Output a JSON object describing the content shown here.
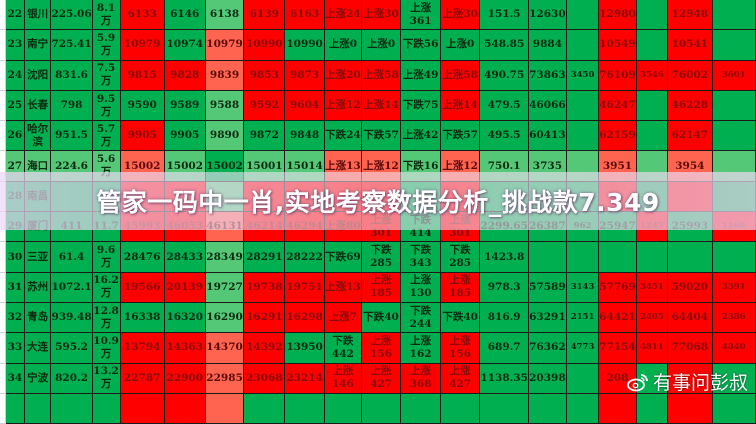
{
  "title": "管家一码中一肖,实地考察数据分析_挑战款7.349",
  "watermark": "有事问彭叔",
  "colors": {
    "g": "#00b050",
    "lg": "#55c878",
    "r": "#ff0000",
    "lr": "#ff6450"
  },
  "rows": [
    [
      [
        "22",
        "g"
      ],
      [
        "银川",
        "g"
      ],
      [
        "225.06",
        "g"
      ],
      [
        "8.1\n万",
        "g"
      ],
      [
        "6133",
        "r"
      ],
      [
        "6146",
        "g"
      ],
      [
        "6138",
        "lg"
      ],
      [
        "6139",
        "r"
      ],
      [
        "6163",
        "r"
      ],
      [
        "上涨24",
        "r"
      ],
      [
        "上涨30",
        "r"
      ],
      [
        "上涨361",
        "g"
      ],
      [
        "上涨30",
        "r"
      ],
      [
        "151.5",
        "g"
      ],
      [
        "12630",
        "g"
      ],
      [
        "",
        "g"
      ],
      [
        "12980",
        "r"
      ],
      [
        "",
        "g"
      ],
      [
        "12948",
        "r"
      ],
      [
        "",
        "g"
      ]
    ],
    [
      [
        "23",
        "g"
      ],
      [
        "南宁",
        "g"
      ],
      [
        "725.41",
        "g"
      ],
      [
        "5.9\n万",
        "g"
      ],
      [
        "10979",
        "r"
      ],
      [
        "10974",
        "g"
      ],
      [
        "10979",
        "lr"
      ],
      [
        "10990",
        "r"
      ],
      [
        "10990",
        "g"
      ],
      [
        "上涨0",
        "g"
      ],
      [
        "上涨0",
        "g"
      ],
      [
        "下跌56",
        "g"
      ],
      [
        "上涨0",
        "g"
      ],
      [
        "548.85",
        "g"
      ],
      [
        "9884",
        "g"
      ],
      [
        "",
        "g"
      ],
      [
        "10549",
        "r"
      ],
      [
        "",
        "g"
      ],
      [
        "10541",
        "r"
      ],
      [
        "",
        "g"
      ]
    ],
    [
      [
        "24",
        "g"
      ],
      [
        "沈阳",
        "g"
      ],
      [
        "831.6",
        "g"
      ],
      [
        "7.5\n万",
        "g"
      ],
      [
        "9815",
        "r"
      ],
      [
        "9828",
        "r"
      ],
      [
        "9839",
        "lr"
      ],
      [
        "9853",
        "r"
      ],
      [
        "9873",
        "r"
      ],
      [
        "上涨20",
        "r"
      ],
      [
        "上涨58",
        "r"
      ],
      [
        "上涨49",
        "g"
      ],
      [
        "上涨58",
        "r"
      ],
      [
        "490.75",
        "g"
      ],
      [
        "73863",
        "g"
      ],
      [
        "3450",
        "g"
      ],
      [
        "76109",
        "r"
      ],
      [
        "3546",
        "r"
      ],
      [
        "76002",
        "r"
      ],
      [
        "3601",
        "r"
      ]
    ],
    [
      [
        "25",
        "g"
      ],
      [
        "长春",
        "g"
      ],
      [
        "798",
        "g"
      ],
      [
        "9.5\n万",
        "g"
      ],
      [
        "9590",
        "g"
      ],
      [
        "9589",
        "g"
      ],
      [
        "9588",
        "lg"
      ],
      [
        "9592",
        "r"
      ],
      [
        "9604",
        "r"
      ],
      [
        "上涨12",
        "r"
      ],
      [
        "上涨14",
        "r"
      ],
      [
        "下跌75",
        "g"
      ],
      [
        "上涨14",
        "r"
      ],
      [
        "479.5",
        "g"
      ],
      [
        "46066",
        "g"
      ],
      [
        "",
        "g"
      ],
      [
        "46247",
        "r"
      ],
      [
        "",
        "g"
      ],
      [
        "46228",
        "r"
      ],
      [
        "",
        "g"
      ]
    ],
    [
      [
        "26",
        "g"
      ],
      [
        "哈尔滨",
        "g"
      ],
      [
        "951.5",
        "g"
      ],
      [
        "5.7\n万",
        "g"
      ],
      [
        "9905",
        "r"
      ],
      [
        "9905",
        "g"
      ],
      [
        "9890",
        "lg"
      ],
      [
        "9872",
        "g"
      ],
      [
        "9848",
        "g"
      ],
      [
        "下跌24",
        "g"
      ],
      [
        "下跌57",
        "g"
      ],
      [
        "上涨42",
        "g"
      ],
      [
        "下跌57",
        "g"
      ],
      [
        "495.5",
        "g"
      ],
      [
        "60413",
        "g"
      ],
      [
        "",
        "g"
      ],
      [
        "62159",
        "r"
      ],
      [
        "",
        "g"
      ],
      [
        "62147",
        "r"
      ],
      [
        "",
        "g"
      ]
    ],
    [
      [
        "27",
        "lg"
      ],
      [
        "海口",
        "lg"
      ],
      [
        "224.6",
        "lg"
      ],
      [
        "5.6\n万",
        "lg"
      ],
      [
        "15002",
        "lr"
      ],
      [
        "15002",
        "lg"
      ],
      [
        "15002",
        "g"
      ],
      [
        "15001",
        "lg"
      ],
      [
        "15014",
        "lg"
      ],
      [
        "上涨13",
        "lr"
      ],
      [
        "上涨12",
        "lr"
      ],
      [
        "下跌16",
        "lg"
      ],
      [
        "上涨12",
        "lr"
      ],
      [
        "750.1",
        "lg"
      ],
      [
        "3735",
        "lg"
      ],
      [
        "",
        "lg"
      ],
      [
        "3951",
        "lr"
      ],
      [
        "",
        "lg"
      ],
      [
        "3954",
        "lr"
      ],
      [
        "",
        "lg"
      ]
    ],
    [
      [
        "28",
        "g"
      ],
      [
        "南昌",
        "g"
      ],
      [
        "",
        "g"
      ],
      [
        "",
        "g"
      ],
      [
        "",
        "r"
      ],
      [
        "",
        "r"
      ],
      [
        "",
        "lg"
      ],
      [
        "",
        "r"
      ],
      [
        "",
        "r"
      ],
      [
        "",
        "r"
      ],
      [
        "",
        "r"
      ],
      [
        "",
        "g"
      ],
      [
        "",
        "r"
      ],
      [
        "",
        "g"
      ],
      [
        "",
        "g"
      ],
      [
        "",
        "g"
      ],
      [
        "",
        "r"
      ],
      [
        "",
        "g"
      ],
      [
        "",
        "r"
      ],
      [
        "",
        "g"
      ]
    ],
    [
      [
        "29",
        "g"
      ],
      [
        "厦门",
        "g"
      ],
      [
        "411",
        "g"
      ],
      [
        "11.7",
        "g"
      ],
      [
        "45993",
        "r"
      ],
      [
        "46053",
        "r"
      ],
      [
        "46131",
        "lr"
      ],
      [
        "46214",
        "r"
      ],
      [
        "46294",
        "r"
      ],
      [
        "上涨80",
        "r"
      ],
      [
        "上涨301",
        "r"
      ],
      [
        "下跌414",
        "g"
      ],
      [
        "上涨301",
        "r"
      ],
      [
        "2299.65",
        "g"
      ],
      [
        "26387",
        "g"
      ],
      [
        "962",
        "g"
      ],
      [
        "25947",
        "g"
      ],
      [
        "1247",
        "r"
      ],
      [
        "25993",
        "g"
      ],
      [
        "1168",
        "r"
      ]
    ],
    [
      [
        "30",
        "g"
      ],
      [
        "三亚",
        "g"
      ],
      [
        "61.4",
        "g"
      ],
      [
        "9.6\n万",
        "g"
      ],
      [
        "28476",
        "g"
      ],
      [
        "28433",
        "g"
      ],
      [
        "28349",
        "lg"
      ],
      [
        "28291",
        "g"
      ],
      [
        "28222",
        "g"
      ],
      [
        "下跌69",
        "g"
      ],
      [
        "下跌285",
        "g"
      ],
      [
        "下跌343",
        "g"
      ],
      [
        "下跌285",
        "g"
      ],
      [
        "1423.8",
        "g"
      ],
      [
        "",
        "g"
      ],
      [
        "",
        "g"
      ],
      [
        "",
        "g"
      ],
      [
        "",
        "g"
      ],
      [
        "",
        "g"
      ],
      [
        "",
        "g"
      ]
    ],
    [
      [
        "31",
        "g"
      ],
      [
        "苏州",
        "g"
      ],
      [
        "1072.1",
        "g"
      ],
      [
        "16.2\n万",
        "g"
      ],
      [
        "19566",
        "r"
      ],
      [
        "20139",
        "r"
      ],
      [
        "19727",
        "lg"
      ],
      [
        "19738",
        "r"
      ],
      [
        "19751",
        "r"
      ],
      [
        "上涨13",
        "r"
      ],
      [
        "上涨185",
        "r"
      ],
      [
        "上涨130",
        "g"
      ],
      [
        "上涨185",
        "r"
      ],
      [
        "978.3",
        "g"
      ],
      [
        "57589",
        "g"
      ],
      [
        "3143",
        "g"
      ],
      [
        "57769",
        "r"
      ],
      [
        "3451",
        "r"
      ],
      [
        "59020",
        "r"
      ],
      [
        "3391",
        "r"
      ]
    ],
    [
      [
        "32",
        "g"
      ],
      [
        "青岛",
        "g"
      ],
      [
        "939.48",
        "g"
      ],
      [
        "12.8\n万",
        "g"
      ],
      [
        "16338",
        "g"
      ],
      [
        "16320",
        "g"
      ],
      [
        "16290",
        "lg"
      ],
      [
        "16291",
        "r"
      ],
      [
        "16298",
        "r"
      ],
      [
        "上涨7",
        "r"
      ],
      [
        "下跌40",
        "g"
      ],
      [
        "下跌244",
        "g"
      ],
      [
        "下跌40",
        "g"
      ],
      [
        "816.9",
        "g"
      ],
      [
        "63291",
        "g"
      ],
      [
        "2151",
        "g"
      ],
      [
        "64421",
        "r"
      ],
      [
        "2405",
        "r"
      ],
      [
        "64404",
        "r"
      ],
      [
        "2386",
        "r"
      ]
    ],
    [
      [
        "33",
        "g"
      ],
      [
        "大连",
        "g"
      ],
      [
        "595.2",
        "g"
      ],
      [
        "10.9\n万",
        "g"
      ],
      [
        "13794",
        "r"
      ],
      [
        "14363",
        "r"
      ],
      [
        "14370",
        "lr"
      ],
      [
        "14392",
        "r"
      ],
      [
        "13950",
        "g"
      ],
      [
        "下跌442",
        "g"
      ],
      [
        "上涨156",
        "r"
      ],
      [
        "上涨162",
        "g"
      ],
      [
        "上涨156",
        "r"
      ],
      [
        "689.7",
        "g"
      ],
      [
        "76362",
        "g"
      ],
      [
        "4773",
        "g"
      ],
      [
        "77154",
        "r"
      ],
      [
        "4811",
        "r"
      ],
      [
        "77068",
        "r"
      ],
      [
        "4840",
        "r"
      ]
    ],
    [
      [
        "34",
        "g"
      ],
      [
        "宁波",
        "g"
      ],
      [
        "820.2",
        "g"
      ],
      [
        "13.2\n万",
        "g"
      ],
      [
        "22787",
        "r"
      ],
      [
        "22900",
        "r"
      ],
      [
        "22985",
        "lr"
      ],
      [
        "23068",
        "r"
      ],
      [
        "23214",
        "r"
      ],
      [
        "上涨146",
        "r"
      ],
      [
        "上涨427",
        "r"
      ],
      [
        "上涨368",
        "r"
      ],
      [
        "上涨427",
        "r"
      ],
      [
        "1138.35",
        "g"
      ],
      [
        "20398",
        "g"
      ],
      [
        "",
        "g"
      ],
      [
        "208",
        "r"
      ],
      [
        "",
        "g"
      ],
      [
        "",
        "r"
      ],
      [
        "",
        "g"
      ]
    ],
    [
      [
        "",
        "g"
      ],
      [
        "",
        "g"
      ],
      [
        "",
        "g"
      ],
      [
        "",
        "g"
      ],
      [
        "",
        "r"
      ],
      [
        "",
        "r"
      ],
      [
        "",
        "lr"
      ],
      [
        "",
        "g"
      ],
      [
        "",
        "g"
      ],
      [
        "",
        "g"
      ],
      [
        "",
        "g"
      ],
      [
        "",
        "g"
      ],
      [
        "",
        "g"
      ],
      [
        "",
        "g"
      ],
      [
        "",
        "g"
      ],
      [
        "",
        "g"
      ],
      [
        "",
        "r"
      ],
      [
        "",
        "g"
      ],
      [
        "",
        "r"
      ],
      [
        "",
        "g"
      ]
    ]
  ]
}
